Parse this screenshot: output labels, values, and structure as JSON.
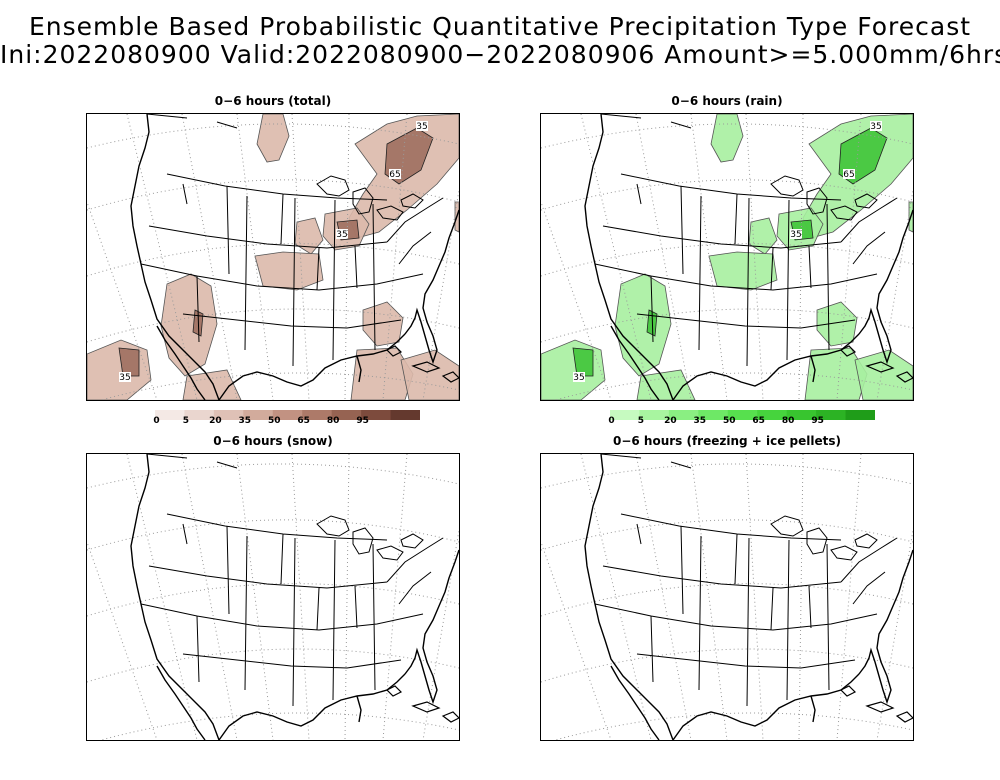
{
  "title_line1": "Ensemble Based Probabilistic Quantitative Precipitation Type Forecast",
  "title_line2": "Ini:2022080900 Valid:2022080900−2022080906 Amount>=5.000mm/6hrs",
  "panels": [
    {
      "id": "total",
      "title": "0−6 hours (total)",
      "contour_labels": [
        "35",
        "65",
        "35",
        "35"
      ]
    },
    {
      "id": "rain",
      "title": "0−6 hours (rain)",
      "contour_labels": [
        "35",
        "65",
        "35",
        "35"
      ]
    },
    {
      "id": "snow",
      "title": "0−6 hours (snow)",
      "contour_labels": []
    },
    {
      "id": "freezing",
      "title": "0−6 hours (freezing + ice pellets)",
      "contour_labels": []
    }
  ],
  "colorbars": [
    {
      "id": "total",
      "labels": [
        "0",
        "5",
        "20",
        "35",
        "50",
        "65",
        "80",
        "95"
      ],
      "colors": [
        "#f4e9e5",
        "#ead6cf",
        "#dfc1b6",
        "#d2ab9c",
        "#c29282",
        "#ad7a69",
        "#966352",
        "#7d4b3d",
        "#64392e"
      ]
    },
    {
      "id": "rain",
      "labels": [
        "0",
        "5",
        "20",
        "35",
        "50",
        "65",
        "80",
        "95"
      ],
      "colors": [
        "#c6fac0",
        "#a8f5a0",
        "#8aef82",
        "#6ee866",
        "#57e04e",
        "#46d43d",
        "#38c52f",
        "#2cb324",
        "#1f9d19"
      ]
    }
  ],
  "map_colors": {
    "total_fill": "#dcb9ab",
    "total_dark": "#9b6a5a",
    "rain_fill": "#a7f0a0",
    "rain_dark": "#39c233"
  }
}
